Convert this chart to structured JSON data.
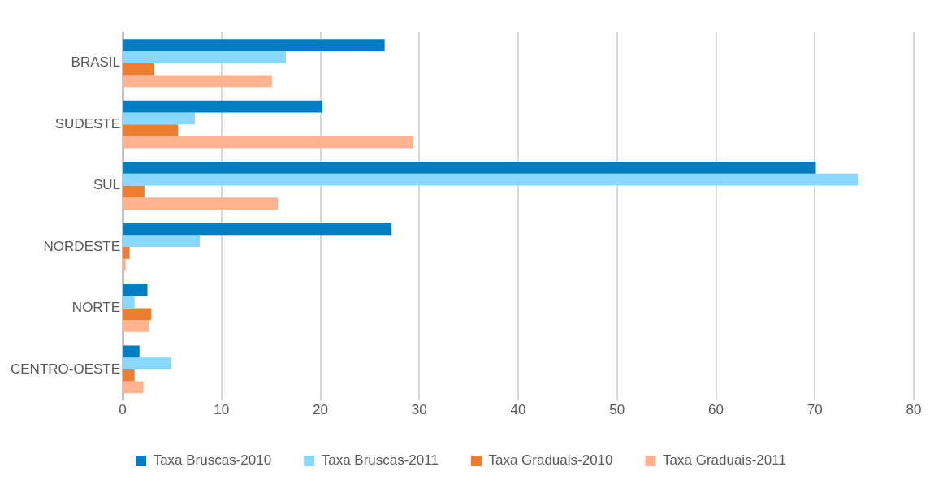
{
  "chart_data": {
    "type": "bar",
    "orientation": "horizontal",
    "categories": [
      "BRASIL",
      "SUDESTE",
      "SUL",
      "NORDESTE",
      "NORTE",
      "CENTRO-OESTE"
    ],
    "series": [
      {
        "name": "Taxa Bruscas-2010",
        "color": "#007ec4",
        "values": [
          26.5,
          20.2,
          70.1,
          27.2,
          2.5,
          1.7
        ]
      },
      {
        "name": "Taxa Bruscas-2011",
        "color": "#88d8ff",
        "values": [
          16.5,
          7.3,
          74.4,
          7.8,
          1.2,
          4.9
        ]
      },
      {
        "name": "Taxa Graduais-2010",
        "color": "#ed7d31",
        "values": [
          3.2,
          5.6,
          2.2,
          0.7,
          2.9,
          1.2
        ]
      },
      {
        "name": "Taxa Graduais-2011",
        "color": "#ffb38f",
        "values": [
          15.1,
          29.4,
          15.7,
          0.3,
          2.7,
          2.1
        ]
      }
    ],
    "xlim": [
      0,
      80
    ],
    "xticks": [
      0,
      10,
      20,
      30,
      40,
      50,
      60,
      70,
      80
    ],
    "grid": "x",
    "legend": "bottom"
  }
}
